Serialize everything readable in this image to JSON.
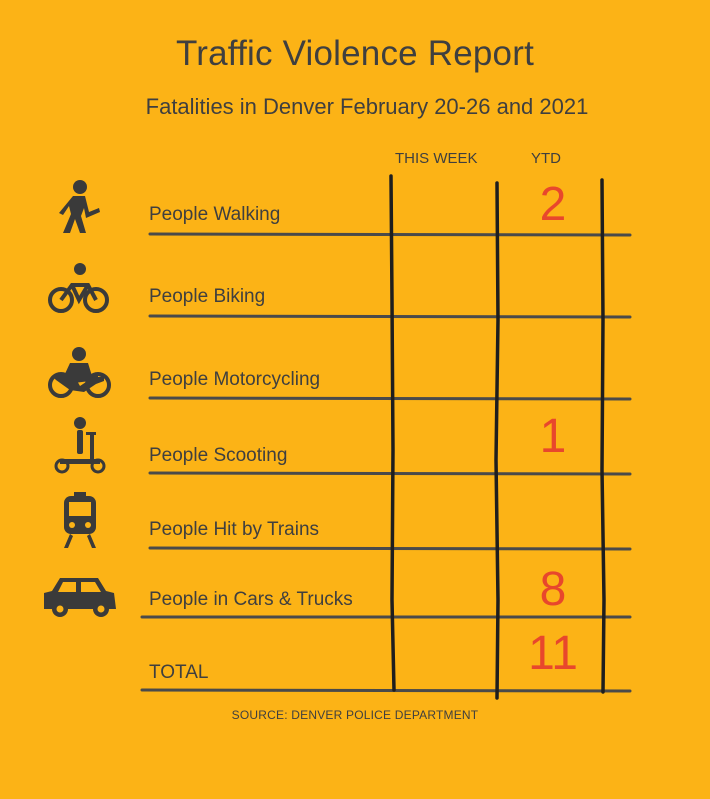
{
  "title": "Traffic Violence Report",
  "subtitle": "Fatalities in Denver February 20-26 and 2021",
  "columns": {
    "this_week": "THIS WEEK",
    "ytd": "YTD"
  },
  "source": "SOURCE: DENVER POLICE DEPARTMENT",
  "colors": {
    "background": "#FCB316",
    "text": "#3F3F3F",
    "value": "#E8472C"
  },
  "chart_data": {
    "type": "table",
    "columns": [
      "THIS WEEK",
      "YTD"
    ],
    "rows": [
      {
        "label": "People Walking",
        "icon": "pedestrian-icon",
        "this_week": "",
        "ytd": "2"
      },
      {
        "label": "People Biking",
        "icon": "bicycle-icon",
        "this_week": "",
        "ytd": ""
      },
      {
        "label": "People Motorcycling",
        "icon": "motorcycle-icon",
        "this_week": "",
        "ytd": ""
      },
      {
        "label": "People Scooting",
        "icon": "scooter-icon",
        "this_week": "",
        "ytd": "1"
      },
      {
        "label": "People Hit by Trains",
        "icon": "train-icon",
        "this_week": "",
        "ytd": ""
      },
      {
        "label": "People in Cars & Trucks",
        "icon": "car-icon",
        "this_week": "",
        "ytd": "8"
      },
      {
        "label": "TOTAL",
        "icon": "",
        "this_week": "",
        "ytd": "11"
      }
    ]
  }
}
